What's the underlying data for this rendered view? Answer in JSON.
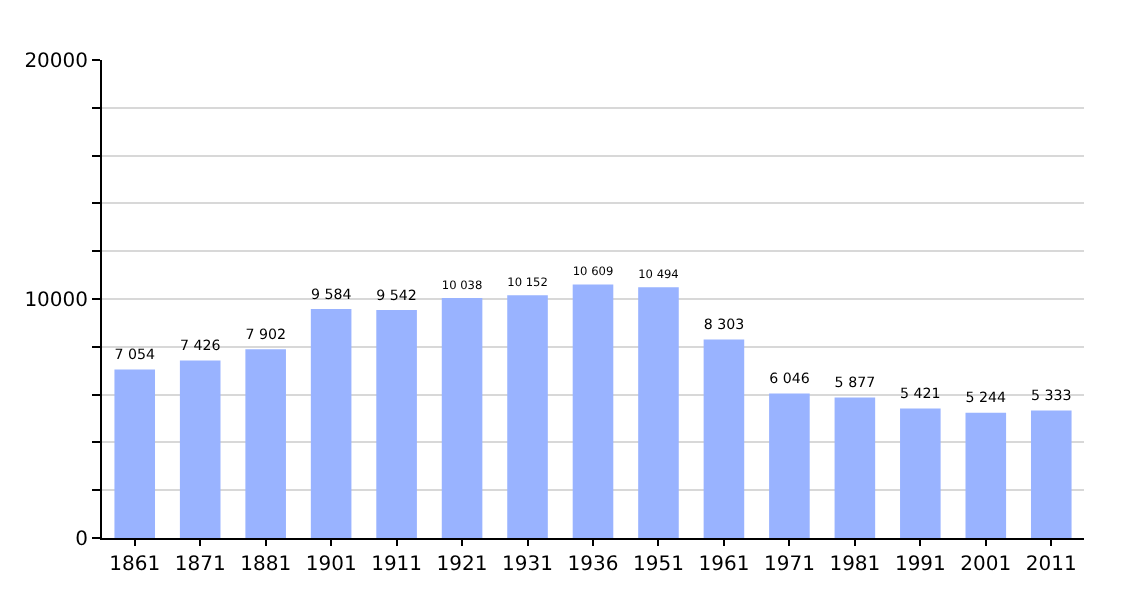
{
  "chart_data": {
    "type": "bar",
    "categories": [
      "1861",
      "1871",
      "1881",
      "1901",
      "1911",
      "1921",
      "1931",
      "1936",
      "1951",
      "1961",
      "1971",
      "1981",
      "1991",
      "2001",
      "2011"
    ],
    "values": [
      7054,
      7426,
      7902,
      9584,
      9542,
      10038,
      10152,
      10609,
      10494,
      8303,
      6046,
      5877,
      5421,
      5244,
      5333
    ],
    "value_labels": [
      "7 054",
      "7 426",
      "7 902",
      "9 584",
      "9 542",
      "10 038",
      "10 152",
      "10 609",
      "10 494",
      "8 303",
      "6 046",
      "5 877",
      "5 421",
      "5 244",
      "5 333"
    ],
    "color": "#99b3ff",
    "ylim": [
      0,
      20000
    ],
    "yticks": [
      0,
      {
        "value": 2000,
        "label": null
      },
      {
        "value": 4000,
        "label": null
      },
      {
        "value": 6000,
        "label": null
      },
      {
        "value": 8000,
        "label": null
      },
      10000,
      {
        "value": 12000,
        "label": null
      },
      {
        "value": 14000,
        "label": null
      },
      {
        "value": 16000,
        "label": null
      },
      {
        "value": 18000,
        "label": null
      },
      20000
    ],
    "grid": "y"
  }
}
